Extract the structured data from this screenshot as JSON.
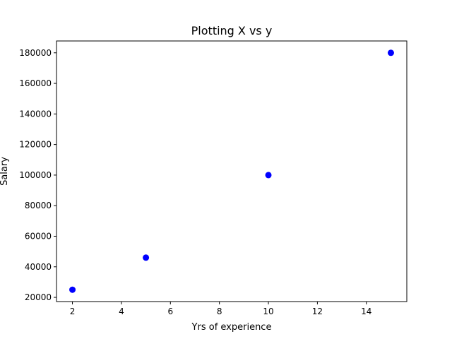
{
  "chart_data": {
    "type": "scatter",
    "title": "Plotting X vs y",
    "xlabel": "Yrs of experience",
    "ylabel": "Salary",
    "xlim": [
      1.35,
      15.65
    ],
    "ylim": [
      17250,
      187750
    ],
    "xticks": [
      2,
      4,
      6,
      8,
      10,
      12,
      14
    ],
    "yticks": [
      20000,
      40000,
      60000,
      80000,
      100000,
      120000,
      140000,
      160000,
      180000
    ],
    "grid": false,
    "legend": false,
    "marker_color": "#0000ff",
    "series": [
      {
        "x": [
          2,
          5,
          10,
          15
        ],
        "y": [
          25000,
          46000,
          100000,
          180000
        ]
      }
    ]
  }
}
